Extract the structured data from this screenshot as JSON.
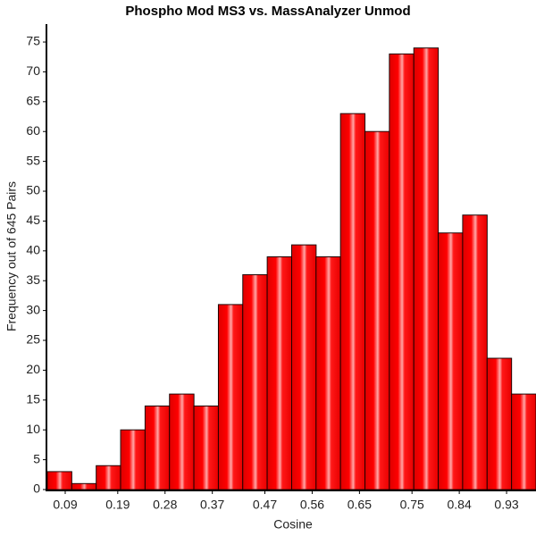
{
  "chart_data": {
    "type": "histogram",
    "title": "Phospho Mod MS3 vs. MassAnalyzer Unmod",
    "x_label": "Cosine",
    "y_label": "Frequency out of 645 Pairs",
    "bins": [
      0.056,
      0.1025,
      0.149,
      0.1955,
      0.242,
      0.2885,
      0.335,
      0.3815,
      0.428,
      0.4745,
      0.521,
      0.5675,
      0.614,
      0.6605,
      0.707,
      0.7535,
      0.8,
      0.8465,
      0.893,
      0.9395,
      0.986
    ],
    "values": [
      3,
      1,
      4,
      10,
      14,
      16,
      14,
      31,
      36,
      39,
      41,
      39,
      63,
      60,
      73,
      74,
      43,
      46,
      22,
      16
    ],
    "color": "#ff0000",
    "xlim": [
      0.056,
      0.986
    ],
    "xticks": [
      0.09,
      0.19,
      0.28,
      0.37,
      0.47,
      0.56,
      0.65,
      0.75,
      0.84,
      0.93
    ],
    "ylim": [
      0,
      78
    ],
    "yticks": [
      0,
      5,
      10,
      15,
      20,
      25,
      30,
      35,
      40,
      45,
      50,
      55,
      60,
      65,
      70,
      75
    ]
  }
}
